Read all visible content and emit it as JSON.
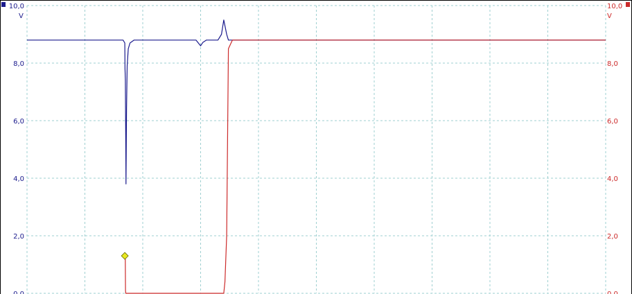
{
  "colors": {
    "channel_a": "#1a1a8c",
    "channel_b": "#cc2a2a",
    "grid": "#9ecfd0",
    "marker": "#e8e820",
    "frame": "#000000"
  },
  "chart_data": {
    "type": "line",
    "title": "",
    "xlabel": "",
    "x_divisions": 10,
    "y_left": {
      "unit": "V",
      "range": [
        0,
        10
      ],
      "ticks": [
        "0,0",
        "2,0",
        "4,0",
        "6,0",
        "8,0",
        "10,0"
      ]
    },
    "y_right": {
      "unit": "V",
      "range": [
        0,
        10
      ],
      "ticks": [
        "0,0",
        "2,0",
        "4,0",
        "6,0",
        "8,0",
        "10,0"
      ]
    },
    "grid": true,
    "x_range": [
      0,
      10
    ],
    "series": [
      {
        "channel": "A",
        "color": "#1a1a8c",
        "axis": "left",
        "x": [
          0,
          1.62,
          1.66,
          1.69,
          1.694,
          1.7,
          1.706,
          1.71,
          1.72,
          1.73,
          1.75,
          1.78,
          1.85,
          2.0,
          2.2,
          2.5,
          2.92,
          3.0,
          3.04,
          3.1,
          3.2,
          3.3,
          3.36,
          3.4,
          3.45,
          3.48,
          3.5,
          3.52,
          3.56,
          3.6,
          3.8,
          4.5,
          4.6,
          5.0,
          6.0,
          7.0,
          8.0,
          10.0
        ],
        "y": [
          8.8,
          8.8,
          8.8,
          8.7,
          7.8,
          7.4,
          5.2,
          3.8,
          6.4,
          7.9,
          8.5,
          8.7,
          8.8,
          8.8,
          8.8,
          8.8,
          8.8,
          8.6,
          8.72,
          8.8,
          8.8,
          8.8,
          9.0,
          9.5,
          9.0,
          8.8,
          8.8,
          8.8,
          8.8,
          8.8,
          8.8,
          8.8,
          8.8,
          8.8,
          8.8,
          8.8,
          8.8,
          8.8
        ]
      },
      {
        "channel": "B",
        "color": "#cc2a2a",
        "axis": "right",
        "x": [
          1.698,
          1.702,
          1.706,
          2.0,
          2.5,
          3.0,
          3.2,
          3.4,
          3.42,
          3.45,
          3.48,
          3.55,
          3.7,
          4.0,
          5.0,
          6.0,
          7.0,
          8.0,
          10.0
        ],
        "y": [
          1.2,
          0.1,
          0.0,
          0.0,
          0.0,
          0.0,
          0.0,
          0.0,
          0.4,
          2.0,
          8.5,
          8.8,
          8.8,
          8.8,
          8.8,
          8.8,
          8.8,
          8.8,
          8.8
        ]
      }
    ],
    "markers": [
      {
        "x": 1.69,
        "y": 1.3,
        "color": "#e8e820"
      }
    ]
  }
}
